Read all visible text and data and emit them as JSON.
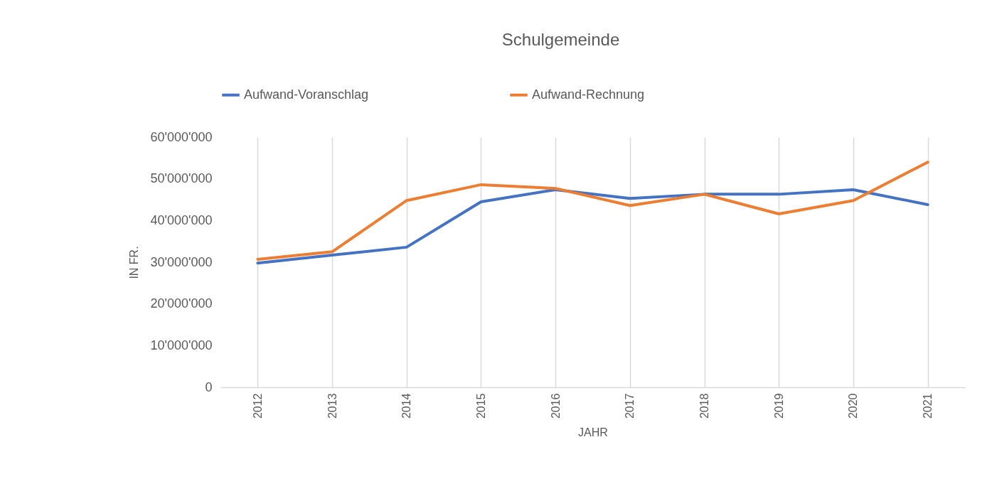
{
  "chart_data": {
    "type": "line",
    "title": "Schulgemeinde",
    "xlabel": "JAHR",
    "ylabel": "IN FR.",
    "categories": [
      "2012",
      "2013",
      "2014",
      "2015",
      "2016",
      "2017",
      "2018",
      "2019",
      "2020",
      "2021"
    ],
    "series": [
      {
        "name": "Aufwand-Voranschlag",
        "color": "#4472c4",
        "values": [
          29800000,
          31700000,
          33600000,
          44500000,
          47400000,
          45300000,
          46300000,
          46300000,
          47400000,
          43800000
        ]
      },
      {
        "name": "Aufwand-Rechnung",
        "color": "#ed7d31",
        "values": [
          30700000,
          32500000,
          44800000,
          48600000,
          47700000,
          43600000,
          46300000,
          41600000,
          44800000,
          54000000
        ]
      }
    ],
    "ylim": [
      0,
      60000000
    ],
    "yticks": [
      0,
      {
        "value": 10000000,
        "label": "10'000'000"
      },
      {
        "value": 20000000,
        "label": "20'000'000"
      },
      {
        "value": 30000000,
        "label": "30'000'000"
      },
      {
        "value": 40000000,
        "label": "40'000'000"
      },
      {
        "value": 50000000,
        "label": "50'000'000"
      },
      {
        "value": 60000000,
        "label": "60'000'000"
      }
    ],
    "grid": "x",
    "legend": "top",
    "marker": "none",
    "line_style": "solid"
  }
}
